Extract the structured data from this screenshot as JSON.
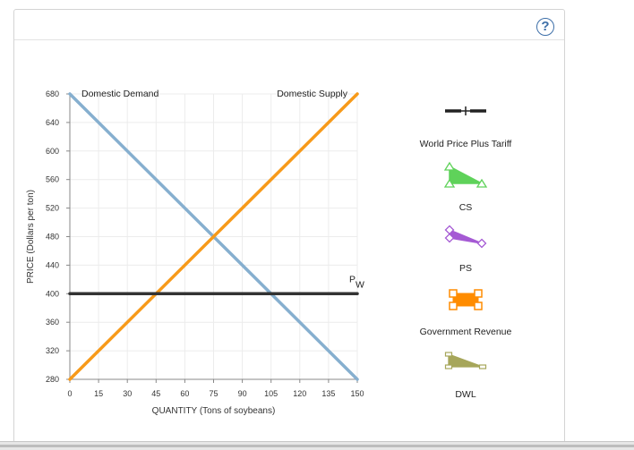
{
  "help": {
    "label": "?"
  },
  "chart_data": {
    "type": "line",
    "xlabel": "QUANTITY (Tons of soybeans)",
    "ylabel": "PRICE (Dollars per ton)",
    "xlim": [
      0,
      150
    ],
    "ylim": [
      280,
      680
    ],
    "x_ticks": [
      "0",
      "15",
      "30",
      "45",
      "60",
      "75",
      "90",
      "105",
      "120",
      "135",
      "150"
    ],
    "y_ticks": [
      "280",
      "320",
      "360",
      "400",
      "440",
      "480",
      "520",
      "560",
      "600",
      "640",
      "680"
    ],
    "grid": true,
    "series": [
      {
        "name": "Domestic Demand",
        "color": "#86afcf",
        "x": [
          0,
          150
        ],
        "y": [
          680,
          280
        ]
      },
      {
        "name": "Domestic Supply",
        "color": "#f79a1a",
        "x": [
          0,
          150
        ],
        "y": [
          280,
          680
        ]
      },
      {
        "name": "P",
        "subscript": "W",
        "color": "#333333",
        "x": [
          0,
          150
        ],
        "y": [
          400,
          400
        ]
      }
    ],
    "legend": {
      "placement": "right",
      "items": [
        {
          "label": "World Price Plus Tariff",
          "icon": "line-cross-icon",
          "color": "#222222"
        },
        {
          "label": "CS",
          "icon": "triangle-icon",
          "color": "#5fd25a"
        },
        {
          "label": "PS",
          "icon": "triangle-diamond-icon",
          "color": "#a55ad4"
        },
        {
          "label": "Government Revenue",
          "icon": "rectangle-icon",
          "color": "#ff8c00"
        },
        {
          "label": "DWL",
          "icon": "triangle-square-icon",
          "color": "#a6a65a"
        }
      ]
    }
  }
}
